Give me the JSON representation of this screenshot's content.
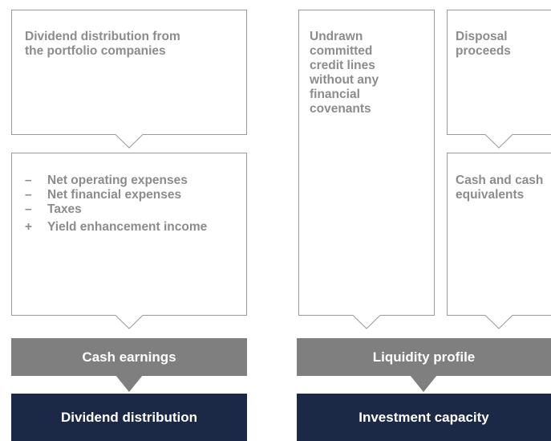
{
  "left": {
    "top_box": {
      "text": "Dividend distribution from the portfolio companies"
    },
    "middle_box": {
      "items": [
        {
          "sign": "–",
          "text": "Net operating expenses"
        },
        {
          "sign": "–",
          "text": "Net financial expenses"
        },
        {
          "sign": "–",
          "text": "Taxes"
        },
        {
          "sign": "+",
          "text": "Yield enhancement income"
        }
      ]
    },
    "bar": "Cash earnings",
    "result": "Dividend distribution"
  },
  "right": {
    "tall_box": {
      "text": "Undrawn committed credit lines without any financial covenants"
    },
    "top_box": {
      "text": "Disposal proceeds"
    },
    "middle_box": {
      "text": "Cash and cash equivalents"
    },
    "bar": "Liquidity profile",
    "result": "Investment capacity"
  }
}
